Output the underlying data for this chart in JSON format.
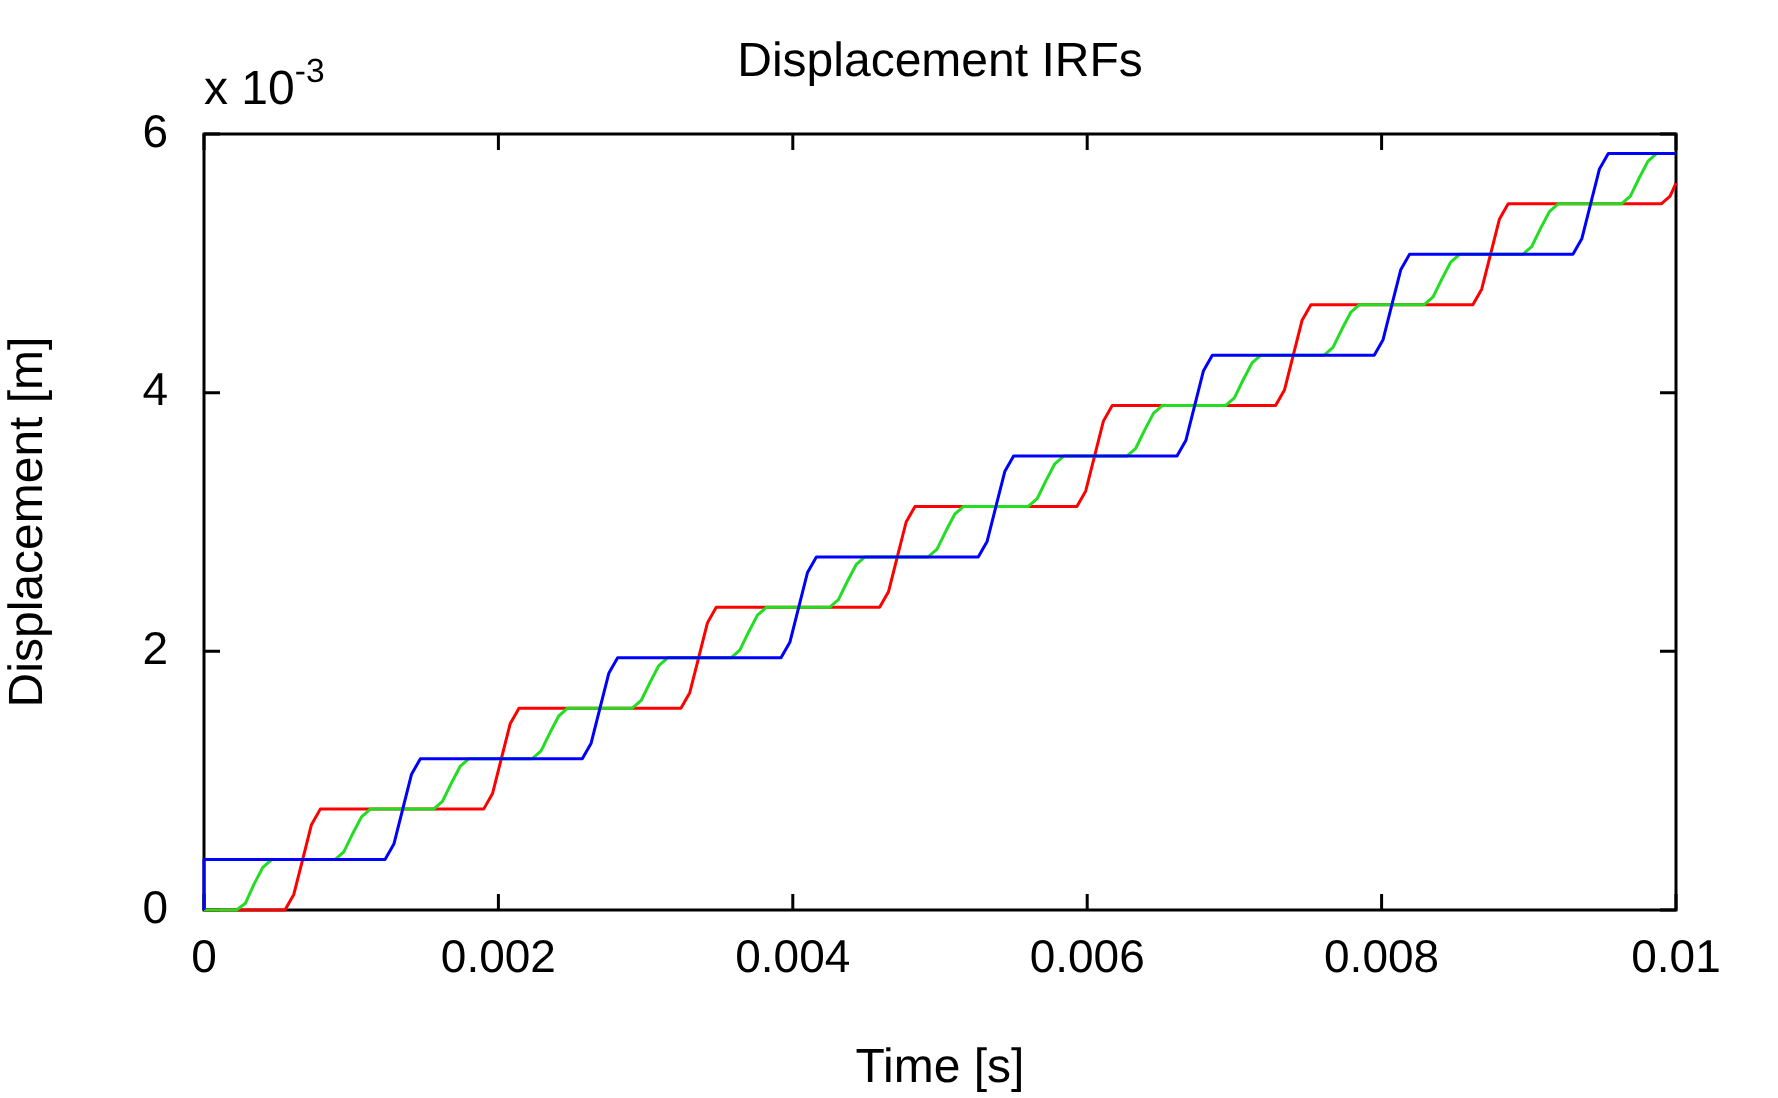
{
  "chart_data": {
    "type": "line",
    "title": "Displacement IRFs",
    "xlabel": "Time [s]",
    "ylabel": "Displacement [m]",
    "annotations": [
      "x 10$^{-3}$"
    ],
    "xlim": [
      0,
      0.01
    ],
    "xticks": [
      0,
      0.002,
      0.004,
      0.006,
      0.008,
      0.01
    ],
    "ylim": [
      0,
      6
    ],
    "yticks": [
      0,
      2,
      4,
      6
    ],
    "series": [
      {
        "color": "#0000ff",
        "x": [
          0,
          0,
          0.00123,
          0.00129,
          0.00135,
          0.00141,
          0.00147,
          0.00257,
          0.00263,
          0.00269,
          0.00275,
          0.00281,
          0.00392,
          0.00398,
          0.00404,
          0.0041,
          0.00416,
          0.00526,
          0.00532,
          0.00538,
          0.00544,
          0.0055,
          0.00661,
          0.00667,
          0.00673,
          0.00679,
          0.00685,
          0.00795,
          0.00801,
          0.00807,
          0.00813,
          0.00819,
          0.0093,
          0.00936,
          0.00942,
          0.00948,
          0.00954,
          0.01
        ],
        "values": [
          0,
          0.39,
          0.39,
          0.51,
          0.78,
          1.05,
          1.17,
          1.17,
          1.29,
          1.56,
          1.83,
          1.95,
          1.95,
          2.07,
          2.34,
          2.61,
          2.73,
          2.73,
          2.85,
          3.12,
          3.39,
          3.51,
          3.51,
          3.63,
          3.9,
          4.17,
          4.29,
          4.29,
          4.41,
          4.68,
          4.95,
          5.07,
          5.07,
          5.19,
          5.46,
          5.73,
          5.85,
          5.85
        ]
      },
      {
        "color": "#22dd22",
        "x": [
          0,
          0.00022,
          0.00028,
          0.00034,
          0.0004,
          0.00046,
          0.00089,
          0.00095,
          0.00101,
          0.00107,
          0.00113,
          0.00156,
          0.00162,
          0.00168,
          0.00174,
          0.0018,
          0.00223,
          0.00229,
          0.00235,
          0.00241,
          0.00247,
          0.00291,
          0.00297,
          0.00303,
          0.00309,
          0.00315,
          0.00358,
          0.00364,
          0.0037,
          0.00376,
          0.00382,
          0.00425,
          0.00431,
          0.00437,
          0.00443,
          0.00449,
          0.00492,
          0.00498,
          0.00504,
          0.0051,
          0.00516,
          0.0056,
          0.00566,
          0.00572,
          0.00578,
          0.00584,
          0.00627,
          0.00633,
          0.00639,
          0.00645,
          0.00651,
          0.00694,
          0.007,
          0.00706,
          0.00712,
          0.00718,
          0.00761,
          0.00767,
          0.00773,
          0.00779,
          0.00785,
          0.00829,
          0.00835,
          0.00841,
          0.00847,
          0.00853,
          0.00896,
          0.00902,
          0.00908,
          0.00914,
          0.0092,
          0.00963,
          0.00969,
          0.00975,
          0.00981,
          0.00987,
          0.01
        ],
        "values": [
          0,
          0,
          0.05,
          0.2,
          0.33,
          0.39,
          0.39,
          0.45,
          0.59,
          0.72,
          0.78,
          0.78,
          0.84,
          0.98,
          1.11,
          1.17,
          1.17,
          1.23,
          1.37,
          1.5,
          1.56,
          1.56,
          1.62,
          1.76,
          1.89,
          1.95,
          1.95,
          2.01,
          2.15,
          2.28,
          2.34,
          2.34,
          2.4,
          2.54,
          2.67,
          2.73,
          2.73,
          2.79,
          2.93,
          3.06,
          3.12,
          3.12,
          3.18,
          3.32,
          3.45,
          3.51,
          3.51,
          3.57,
          3.71,
          3.84,
          3.9,
          3.9,
          3.96,
          4.1,
          4.23,
          4.29,
          4.29,
          4.35,
          4.49,
          4.62,
          4.68,
          4.68,
          4.74,
          4.88,
          5.01,
          5.07,
          5.07,
          5.13,
          5.27,
          5.4,
          5.46,
          5.46,
          5.52,
          5.66,
          5.79,
          5.85,
          5.85
        ]
      },
      {
        "color": "#ff0000",
        "x": [
          0,
          0.00055,
          0.00061,
          0.00067,
          0.00073,
          0.00079,
          0.0019,
          0.00196,
          0.00202,
          0.00208,
          0.00214,
          0.00324,
          0.0033,
          0.00336,
          0.00342,
          0.00348,
          0.00459,
          0.00465,
          0.00471,
          0.00477,
          0.00483,
          0.00593,
          0.00599,
          0.00605,
          0.00611,
          0.00617,
          0.00728,
          0.00734,
          0.0074,
          0.00746,
          0.00752,
          0.00862,
          0.00868,
          0.00874,
          0.0088,
          0.00886,
          0.0099,
          0.00996,
          0.01
        ],
        "values": [
          0,
          0,
          0.12,
          0.39,
          0.66,
          0.78,
          0.78,
          0.9,
          1.17,
          1.44,
          1.56,
          1.56,
          1.68,
          1.95,
          2.22,
          2.34,
          2.34,
          2.46,
          2.73,
          3.0,
          3.12,
          3.12,
          3.24,
          3.51,
          3.78,
          3.9,
          3.9,
          4.02,
          4.29,
          4.56,
          4.68,
          4.68,
          4.8,
          5.07,
          5.34,
          5.46,
          5.46,
          5.52,
          5.62
        ]
      }
    ]
  }
}
